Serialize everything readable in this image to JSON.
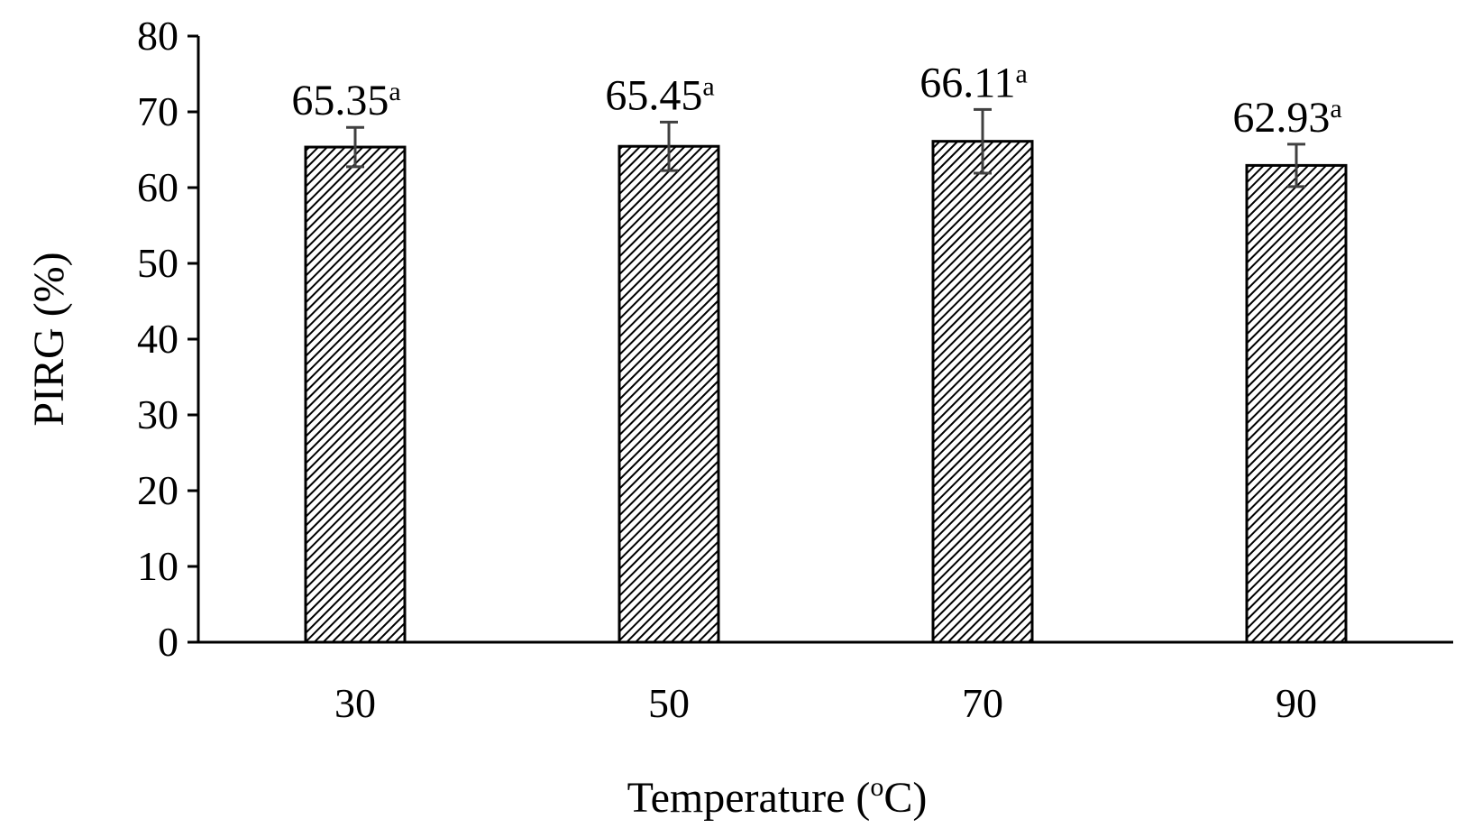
{
  "chart_data": {
    "type": "bar",
    "categories": [
      "30",
      "50",
      "70",
      "90"
    ],
    "values": [
      65.35,
      65.45,
      66.11,
      62.93
    ],
    "errors": [
      2.6,
      3.2,
      4.2,
      2.8
    ],
    "data_labels": [
      "65.35",
      "65.45",
      "66.11",
      "62.93"
    ],
    "significance_letters": [
      "a",
      "a",
      "a",
      "a"
    ],
    "xlabel": "Temperature (",
    "xlabel_sup": "o",
    "xlabel_end": "C)",
    "ylabel": "PIRG (%)",
    "ylim": [
      0,
      80
    ],
    "yticks": [
      "0",
      "10",
      "20",
      "30",
      "40",
      "50",
      "60",
      "70",
      "80"
    ],
    "grid": false,
    "bar_fill": "hatched",
    "colors": {
      "bar_hatch": "#000000",
      "bar_bg": "#ffffff",
      "error_bar": "#404040"
    }
  }
}
